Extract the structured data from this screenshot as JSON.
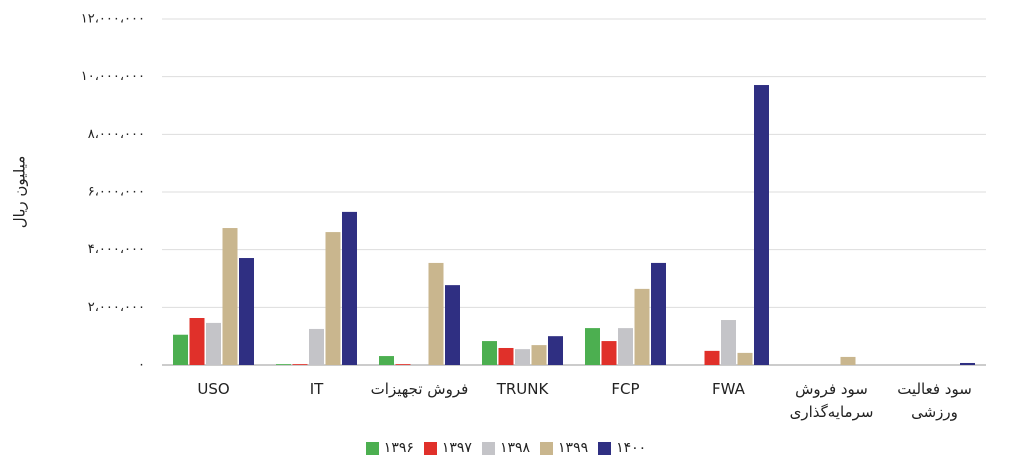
{
  "chart_data": {
    "type": "bar",
    "ylabel": "میلیون ریال",
    "categories": [
      "USO",
      "IT",
      "فروش تجهیزات",
      "TRUNK",
      "FCP",
      "FWA",
      "سود فروش سرمایه‌گذاری",
      "سود فعالیت ورزشی"
    ],
    "series": [
      {
        "name": "۱۳۹۶",
        "color": "#4caf50",
        "values": [
          1050000,
          30000,
          310000,
          830000,
          1280000,
          0,
          0,
          0
        ]
      },
      {
        "name": "۱۳۹۷",
        "color": "#e0302a",
        "values": [
          1630000,
          30000,
          30000,
          590000,
          830000,
          490000,
          0,
          0
        ]
      },
      {
        "name": "۱۳۹۸",
        "color": "#c4c4c8",
        "values": [
          1460000,
          1250000,
          0,
          550000,
          1280000,
          1560000,
          0,
          0
        ]
      },
      {
        "name": "۱۳۹۹",
        "color": "#c9b68e",
        "values": [
          4750000,
          4610000,
          3540000,
          690000,
          2640000,
          420000,
          280000,
          0
        ]
      },
      {
        "name": "۱۴۰۰",
        "color": "#2f2f82",
        "values": [
          3710000,
          5310000,
          2770000,
          1000000,
          3540000,
          9710000,
          0,
          70000
        ]
      }
    ],
    "ylim": [
      0,
      12000000
    ],
    "yticks": [
      {
        "value": 0,
        "label": "۰"
      },
      {
        "value": 2000000,
        "label": "۲،۰۰۰،۰۰۰"
      },
      {
        "value": 4000000,
        "label": "۴،۰۰۰،۰۰۰"
      },
      {
        "value": 6000000,
        "label": "۶،۰۰۰،۰۰۰"
      },
      {
        "value": 8000000,
        "label": "۸،۰۰۰،۰۰۰"
      },
      {
        "value": 10000000,
        "label": "۱۰،۰۰۰،۰۰۰"
      },
      {
        "value": 12000000,
        "label": "۱۲،۰۰۰،۰۰۰"
      }
    ],
    "grid": true
  }
}
